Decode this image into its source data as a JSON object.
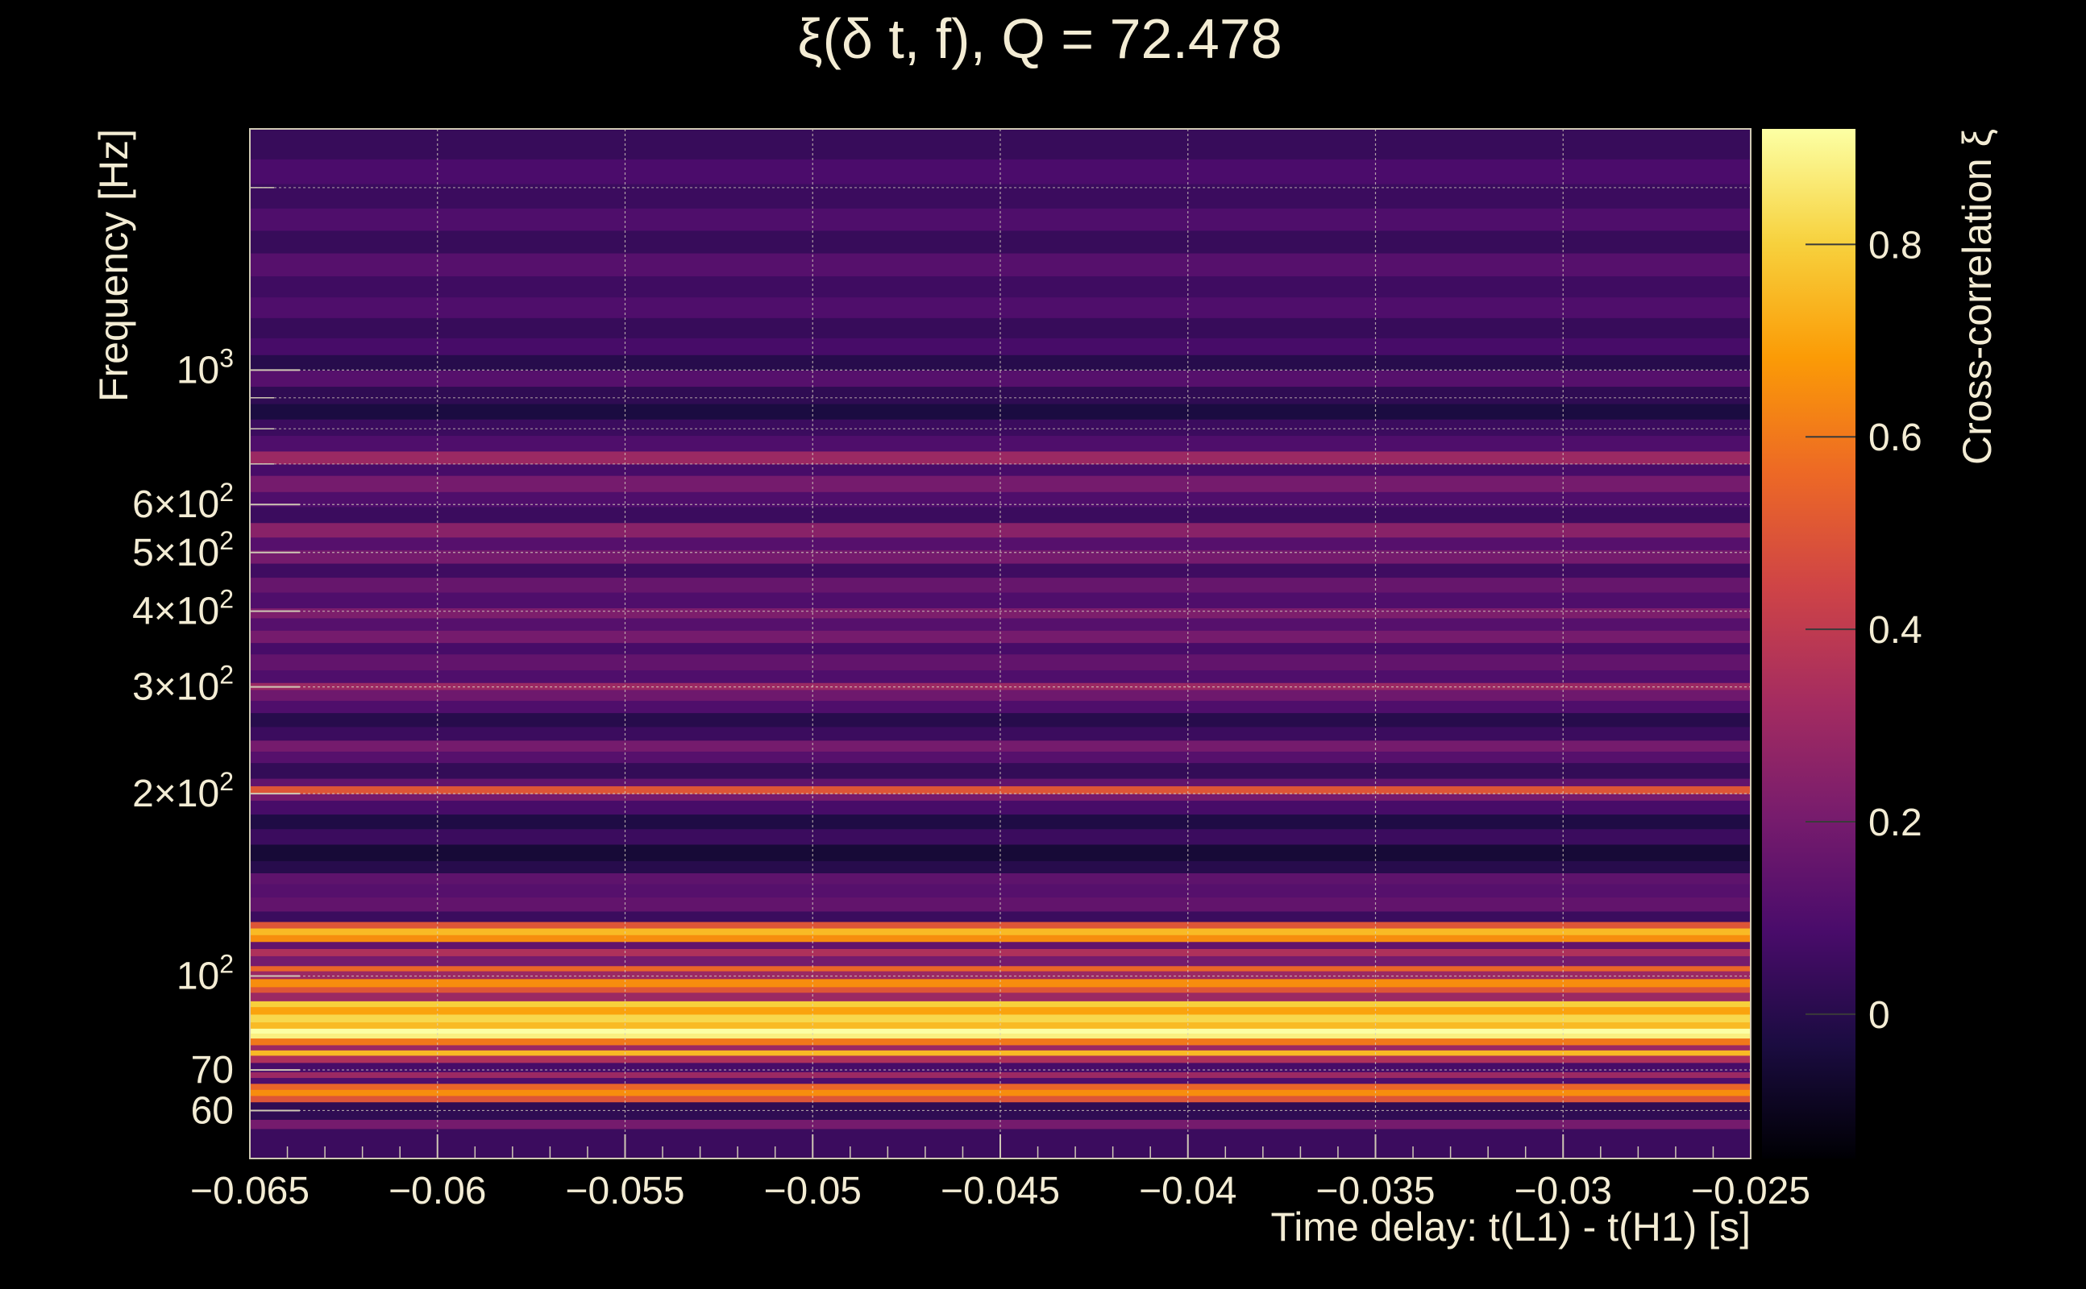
{
  "chart_data": {
    "type": "heatmap",
    "title": "ξ(δ t, f), Q = 72.478",
    "xlabel": "Time delay: t(L1) - t(H1) [s]",
    "ylabel": "Frequency [Hz]",
    "colorbar_label": "Cross-correlation ξ",
    "xlim": [
      -0.065,
      -0.025
    ],
    "ylim": [
      50,
      2500
    ],
    "yscale": "log",
    "clim": [
      -0.15,
      0.92
    ],
    "grid": true,
    "x_ticks": [
      {
        "value": -0.065,
        "label": "−0.065"
      },
      {
        "value": -0.06,
        "label": "−0.06"
      },
      {
        "value": -0.055,
        "label": "−0.055"
      },
      {
        "value": -0.05,
        "label": "−0.05"
      },
      {
        "value": -0.045,
        "label": "−0.045"
      },
      {
        "value": -0.04,
        "label": "−0.04"
      },
      {
        "value": -0.035,
        "label": "−0.035"
      },
      {
        "value": -0.03,
        "label": "−0.03"
      },
      {
        "value": -0.025,
        "label": "−0.025"
      }
    ],
    "y_ticks": [
      {
        "value": 60,
        "base": "60",
        "exp": ""
      },
      {
        "value": 70,
        "base": "70",
        "exp": ""
      },
      {
        "value": 100,
        "base": "10",
        "exp": "2"
      },
      {
        "value": 200,
        "base": "2×10",
        "exp": "2"
      },
      {
        "value": 300,
        "base": "3×10",
        "exp": "2"
      },
      {
        "value": 400,
        "base": "4×10",
        "exp": "2"
      },
      {
        "value": 500,
        "base": "5×10",
        "exp": "2"
      },
      {
        "value": 600,
        "base": "6×10",
        "exp": "2"
      },
      {
        "value": 1000,
        "base": "10",
        "exp": "3"
      }
    ],
    "y_minor_ticks": [
      800,
      900,
      700,
      2000
    ],
    "colorbar_ticks": [
      {
        "value": 0,
        "label": "0"
      },
      {
        "value": 0.2,
        "label": "0.2"
      },
      {
        "value": 0.4,
        "label": "0.4"
      },
      {
        "value": 0.6,
        "label": "0.6"
      },
      {
        "value": 0.8,
        "label": "0.8"
      }
    ],
    "colormap_stops": [
      "#000004",
      "#1b0c41",
      "#4a0c6b",
      "#781c6d",
      "#a52c60",
      "#cf4446",
      "#ed6925",
      "#fb9b06",
      "#f7d13d",
      "#fcffa4"
    ],
    "bands": [
      {
        "f_low": 50,
        "f_high": 56,
        "value": 0.05
      },
      {
        "f_low": 56,
        "f_high": 58,
        "value": 0.2
      },
      {
        "f_low": 58,
        "f_high": 62,
        "value": 0.02
      },
      {
        "f_low": 62,
        "f_high": 63.5,
        "value": 0.5
      },
      {
        "f_low": 63.5,
        "f_high": 65,
        "value": 0.65
      },
      {
        "f_low": 65,
        "f_high": 66.5,
        "value": 0.55
      },
      {
        "f_low": 66.5,
        "f_high": 68,
        "value": 0.1
      },
      {
        "f_low": 68,
        "f_high": 69.5,
        "value": 0.3
      },
      {
        "f_low": 69.5,
        "f_high": 72,
        "value": 0.08
      },
      {
        "f_low": 72,
        "f_high": 74,
        "value": 0.35
      },
      {
        "f_low": 74,
        "f_high": 75.5,
        "value": 0.75
      },
      {
        "f_low": 75.5,
        "f_high": 77,
        "value": 0.3
      },
      {
        "f_low": 77,
        "f_high": 79,
        "value": 0.6
      },
      {
        "f_low": 79,
        "f_high": 80.5,
        "value": 0.88
      },
      {
        "f_low": 80.5,
        "f_high": 82,
        "value": 0.92
      },
      {
        "f_low": 82,
        "f_high": 84,
        "value": 0.75
      },
      {
        "f_low": 84,
        "f_high": 86.5,
        "value": 0.82
      },
      {
        "f_low": 86.5,
        "f_high": 89,
        "value": 0.7
      },
      {
        "f_low": 89,
        "f_high": 91,
        "value": 0.8
      },
      {
        "f_low": 91,
        "f_high": 94,
        "value": 0.3
      },
      {
        "f_low": 94,
        "f_high": 96,
        "value": 0.5
      },
      {
        "f_low": 96,
        "f_high": 99,
        "value": 0.65
      },
      {
        "f_low": 99,
        "f_high": 102,
        "value": 0.3
      },
      {
        "f_low": 102,
        "f_high": 104,
        "value": 0.55
      },
      {
        "f_low": 104,
        "f_high": 108,
        "value": 0.2
      },
      {
        "f_low": 108,
        "f_high": 111,
        "value": 0.35
      },
      {
        "f_low": 111,
        "f_high": 114,
        "value": 0.15
      },
      {
        "f_low": 114,
        "f_high": 117,
        "value": 0.65
      },
      {
        "f_low": 117,
        "f_high": 120,
        "value": 0.75
      },
      {
        "f_low": 120,
        "f_high": 123,
        "value": 0.5
      },
      {
        "f_low": 123,
        "f_high": 128,
        "value": 0.05
      },
      {
        "f_low": 128,
        "f_high": 135,
        "value": 0.15
      },
      {
        "f_low": 135,
        "f_high": 142,
        "value": 0.12
      },
      {
        "f_low": 142,
        "f_high": 148,
        "value": 0.14
      },
      {
        "f_low": 148,
        "f_high": 155,
        "value": 0.0
      },
      {
        "f_low": 155,
        "f_high": 165,
        "value": -0.05
      },
      {
        "f_low": 165,
        "f_high": 175,
        "value": 0.05
      },
      {
        "f_low": 175,
        "f_high": 185,
        "value": -0.02
      },
      {
        "f_low": 185,
        "f_high": 195,
        "value": 0.08
      },
      {
        "f_low": 195,
        "f_high": 200,
        "value": 0.2
      },
      {
        "f_low": 200,
        "f_high": 206,
        "value": 0.5
      },
      {
        "f_low": 206,
        "f_high": 212,
        "value": 0.15
      },
      {
        "f_low": 212,
        "f_high": 225,
        "value": 0.03
      },
      {
        "f_low": 225,
        "f_high": 235,
        "value": 0.12
      },
      {
        "f_low": 235,
        "f_high": 245,
        "value": 0.2
      },
      {
        "f_low": 245,
        "f_high": 258,
        "value": 0.05
      },
      {
        "f_low": 258,
        "f_high": 272,
        "value": 0.0
      },
      {
        "f_low": 272,
        "f_high": 285,
        "value": 0.1
      },
      {
        "f_low": 285,
        "f_high": 297,
        "value": 0.18
      },
      {
        "f_low": 297,
        "f_high": 305,
        "value": 0.3
      },
      {
        "f_low": 305,
        "f_high": 320,
        "value": 0.1
      },
      {
        "f_low": 320,
        "f_high": 340,
        "value": 0.15
      },
      {
        "f_low": 340,
        "f_high": 355,
        "value": 0.08
      },
      {
        "f_low": 355,
        "f_high": 372,
        "value": 0.2
      },
      {
        "f_low": 372,
        "f_high": 390,
        "value": 0.12
      },
      {
        "f_low": 390,
        "f_high": 405,
        "value": 0.22
      },
      {
        "f_low": 405,
        "f_high": 430,
        "value": 0.1
      },
      {
        "f_low": 430,
        "f_high": 455,
        "value": 0.16
      },
      {
        "f_low": 455,
        "f_high": 480,
        "value": 0.06
      },
      {
        "f_low": 480,
        "f_high": 505,
        "value": 0.2
      },
      {
        "f_low": 505,
        "f_high": 530,
        "value": 0.12
      },
      {
        "f_low": 530,
        "f_high": 560,
        "value": 0.25
      },
      {
        "f_low": 560,
        "f_high": 595,
        "value": 0.05
      },
      {
        "f_low": 595,
        "f_high": 630,
        "value": 0.1
      },
      {
        "f_low": 630,
        "f_high": 670,
        "value": 0.2
      },
      {
        "f_low": 670,
        "f_high": 700,
        "value": 0.08
      },
      {
        "f_low": 700,
        "f_high": 735,
        "value": 0.3
      },
      {
        "f_low": 735,
        "f_high": 780,
        "value": 0.1
      },
      {
        "f_low": 780,
        "f_high": 830,
        "value": 0.05
      },
      {
        "f_low": 830,
        "f_high": 880,
        "value": -0.03
      },
      {
        "f_low": 880,
        "f_high": 940,
        "value": 0.02
      },
      {
        "f_low": 940,
        "f_high": 1000,
        "value": 0.12
      },
      {
        "f_low": 1000,
        "f_high": 1060,
        "value": 0.0
      },
      {
        "f_low": 1060,
        "f_high": 1130,
        "value": 0.08
      },
      {
        "f_low": 1130,
        "f_high": 1220,
        "value": 0.04
      },
      {
        "f_low": 1220,
        "f_high": 1320,
        "value": 0.1
      },
      {
        "f_low": 1320,
        "f_high": 1430,
        "value": 0.06
      },
      {
        "f_low": 1430,
        "f_high": 1560,
        "value": 0.12
      },
      {
        "f_low": 1560,
        "f_high": 1700,
        "value": 0.04
      },
      {
        "f_low": 1700,
        "f_high": 1850,
        "value": 0.1
      },
      {
        "f_low": 1850,
        "f_high": 2030,
        "value": 0.05
      },
      {
        "f_low": 2030,
        "f_high": 2230,
        "value": 0.09
      },
      {
        "f_low": 2230,
        "f_high": 2500,
        "value": 0.04
      }
    ]
  }
}
